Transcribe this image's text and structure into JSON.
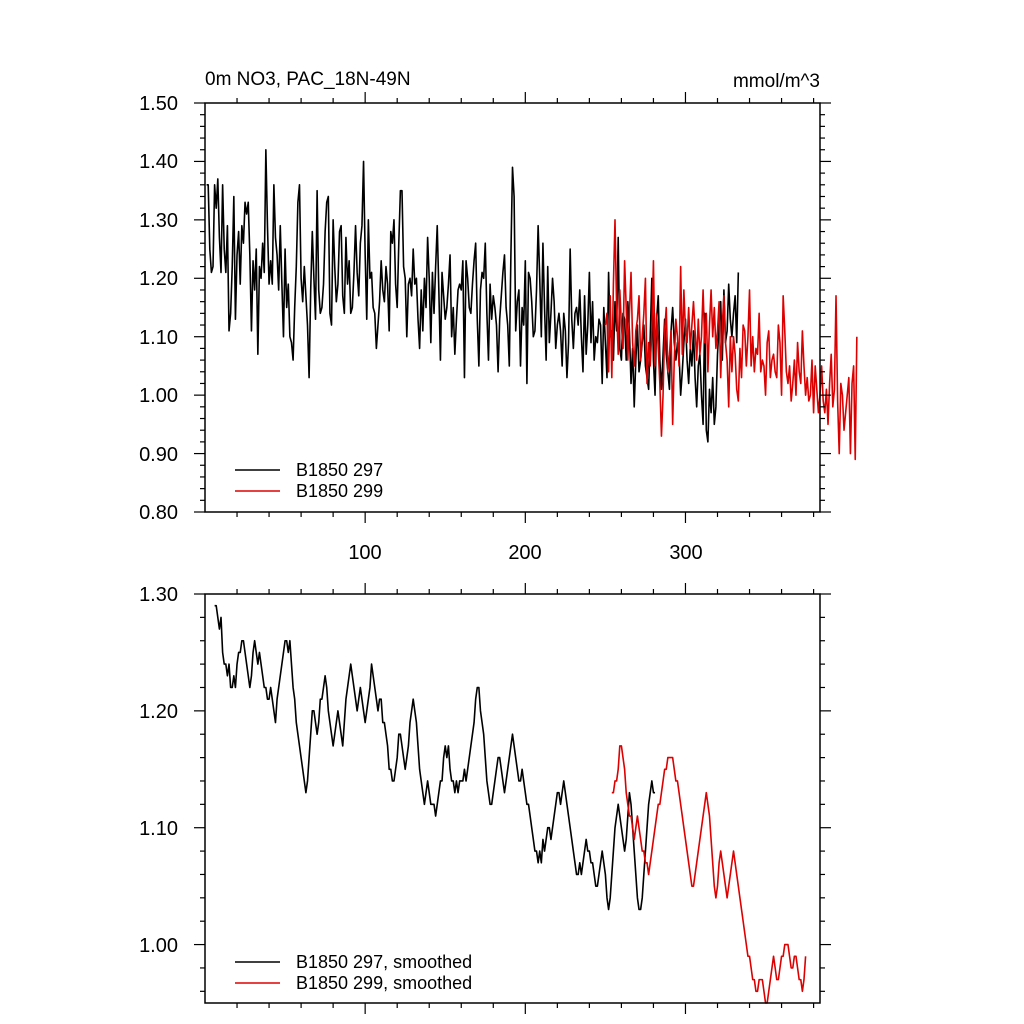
{
  "chart_data": [
    {
      "type": "line",
      "title": "0m NO3, PAC_18N-49N",
      "units": "mmol/m^3",
      "xlim": [
        0,
        384
      ],
      "ylim": [
        0.8,
        1.5
      ],
      "ytick_labels": [
        "0.80",
        "0.90",
        "1.00",
        "1.10",
        "1.20",
        "1.30",
        "1.40",
        "1.50"
      ],
      "xtick_labels": [
        "100",
        "200",
        "300"
      ],
      "legend_position": "bottom-left",
      "series": [
        {
          "name": "B1850 297",
          "color": "#000000",
          "x_start": 1,
          "values": [
            1.36,
            1.36,
            1.25,
            1.21,
            1.22,
            1.36,
            1.32,
            1.37,
            1.27,
            1.21,
            1.36,
            1.25,
            1.21,
            1.29,
            1.11,
            1.14,
            1.22,
            1.34,
            1.13,
            1.24,
            1.28,
            1.19,
            1.29,
            1.26,
            1.33,
            1.31,
            1.33,
            1.24,
            1.11,
            1.23,
            1.18,
            1.25,
            1.07,
            1.22,
            1.2,
            1.26,
            1.21,
            1.42,
            1.29,
            1.19,
            1.23,
            1.19,
            1.36,
            1.27,
            1.24,
            1.18,
            1.29,
            1.19,
            1.1,
            1.25,
            1.15,
            1.19,
            1.1,
            1.09,
            1.06,
            1.15,
            1.22,
            1.33,
            1.36,
            1.2,
            1.16,
            1.22,
            1.17,
            1.12,
            1.03,
            1.18,
            1.28,
            1.2,
            1.13,
            1.35,
            1.18,
            1.14,
            1.15,
            1.19,
            1.28,
            1.33,
            1.34,
            1.14,
            1.12,
            1.3,
            1.22,
            1.16,
            1.19,
            1.28,
            1.29,
            1.17,
            1.14,
            1.27,
            1.19,
            1.23,
            1.14,
            1.15,
            1.21,
            1.29,
            1.21,
            1.17,
            1.26,
            1.29,
            1.4,
            1.24,
            1.13,
            1.3,
            1.2,
            1.21,
            1.15,
            1.14,
            1.08,
            1.12,
            1.16,
            1.23,
            1.18,
            1.16,
            1.22,
            1.19,
            1.11,
            1.28,
            1.26,
            1.3,
            1.19,
            1.15,
            1.26,
            1.35,
            1.35,
            1.22,
            1.2,
            1.1,
            1.19,
            1.2,
            1.17,
            1.25,
            1.19,
            1.2,
            1.13,
            1.08,
            1.18,
            1.11,
            1.2,
            1.15,
            1.27,
            1.2,
            1.09,
            1.21,
            1.14,
            1.22,
            1.29,
            1.18,
            1.06,
            1.21,
            1.17,
            1.13,
            1.15,
            1.19,
            1.24,
            1.1,
            1.15,
            1.07,
            1.13,
            1.18,
            1.19,
            1.18,
            1.23,
            1.03,
            1.23,
            1.2,
            1.15,
            1.14,
            1.19,
            1.23,
            1.26,
            1.13,
            1.05,
            1.18,
            1.21,
            1.2,
            1.26,
            1.14,
            1.06,
            1.19,
            1.13,
            1.17,
            1.15,
            1.12,
            1.04,
            1.13,
            1.17,
            1.21,
            1.24,
            1.15,
            1.12,
            1.05,
            1.24,
            1.39,
            1.34,
            1.11,
            1.16,
            1.18,
            1.05,
            1.15,
            1.12,
            1.23,
            1.02,
            1.21,
            1.2,
            1.16,
            1.1,
            1.11,
            1.18,
            1.29,
            1.2,
            1.1,
            1.26,
            1.15,
            1.06,
            1.22,
            1.09,
            1.14,
            1.2,
            1.16,
            1.08,
            1.12,
            1.14,
            1.11,
            1.05,
            1.14,
            1.11,
            1.03,
            1.09,
            1.25,
            1.13,
            1.08,
            1.14,
            1.15,
            1.12,
            1.18,
            1.1,
            1.04,
            1.17,
            1.07,
            1.12,
            1.21,
            1.09,
            1.16,
            1.06,
            1.1,
            1.09,
            1.13,
            1.12,
            1.02,
            1.15,
            1.09,
            1.03,
            1.21,
            1.1,
            1.11,
            1.06,
            1.16,
            1.11,
            1.27,
            1.08,
            1.06,
            1.14,
            1.13,
            1.06,
            1.16,
            1.11,
            1.02,
            1.08,
            0.98,
            1.06,
            1.12,
            1.04,
            1.06,
            1.09,
            1.12,
            1.05,
            1.03,
            1.01,
            1.1,
            1.2,
            1.06,
            1.0,
            1.13,
            1.17,
            1.06,
            1.01,
            1.07,
            1.13,
            1.07,
            1.04,
            1.01,
            1.11,
            1.15,
            1.09,
            1.06,
            1.09,
            1.07,
            1.0,
            1.04,
            1.09,
            1.13,
            1.06,
            1.02,
            1.08,
            1.05,
            1.11,
            1.03,
            0.98,
            1.05,
            1.07,
            1.0,
            0.95,
            1.14,
            0.94,
            0.92,
            1.01,
            0.97,
            1.03,
            0.95,
            0.98,
            1.07,
            1.12,
            1.16,
            1.06,
            1.18,
            1.09,
            1.11,
            1.19,
            1.13,
            1.1,
            1.14,
            1.17,
            1.09,
            1.21
          ]
        },
        {
          "name": "B1850 299",
          "color": "#dd0000",
          "x_start": 250,
          "values": [
            1.12,
            1.14,
            1.04,
            1.17,
            1.03,
            1.19,
            1.3,
            1.15,
            1.07,
            1.18,
            1.12,
            1.08,
            1.23,
            1.15,
            1.06,
            1.14,
            1.21,
            1.09,
            1.05,
            1.11,
            1.13,
            1.17,
            1.06,
            1.1,
            1.14,
            1.2,
            1.02,
            1.09,
            1.05,
            1.11,
            1.23,
            1.05,
            1.14,
            1.08,
            1.02,
            0.93,
            1.0,
            1.11,
            1.15,
            1.04,
            1.07,
            1.11,
            0.95,
            1.06,
            1.13,
            1.1,
            1.05,
            1.22,
            1.07,
            1.18,
            1.11,
            1.09,
            1.15,
            1.08,
            1.12,
            1.16,
            1.11,
            1.06,
            1.13,
            1.07,
            1.1,
            1.18,
            1.09,
            1.14,
            1.04,
            1.12,
            1.18,
            1.1,
            1.15,
            1.08,
            1.11,
            1.16,
            1.03,
            1.12,
            1.17,
            1.09,
            1.06,
            0.98,
            1.1,
            1.04,
            1.1,
            1.07,
            1.01,
            0.99,
            1.08,
            1.03,
            1.12,
            1.11,
            1.05,
            1.1,
            1.18,
            1.05,
            1.1,
            1.04,
            1.08,
            1.07,
            1.14,
            1.04,
            1.06,
            1.05,
            1.0,
            1.09,
            1.11,
            1.03,
            1.06,
            1.07,
            1.04,
            1.03,
            1.12,
            1.09,
            1.0,
            1.17,
            1.11,
            1.04,
            1.02,
            1.05,
            0.99,
            1.02,
            1.06,
            1.0,
            1.09,
            1.04,
            1.02,
            1.11,
            1.05,
            1.0,
            1.03,
            0.99,
            1.0,
            1.06,
            0.97,
            1.05,
            1.01,
            0.97,
            1.0,
            1.05,
            0.99,
            0.97,
            1.01,
            0.95,
            1.02,
            1.07,
            0.98,
            1.01,
            1.17,
            0.99,
            0.9,
            1.02,
            1.0,
            0.94,
            0.97,
            1.0,
            1.03,
            0.9,
            1.02,
            1.05,
            0.89,
            1.1
          ]
        }
      ]
    },
    {
      "type": "line",
      "title": "",
      "xlim": [
        0,
        384
      ],
      "ylim": [
        0.95,
        1.3
      ],
      "ytick_labels": [
        "1.00",
        "1.10",
        "1.20",
        "1.30"
      ],
      "legend_position": "bottom-left",
      "series": [
        {
          "name": "B1850 297, smoothed",
          "color": "#000000",
          "x_start": 6,
          "values": [
            1.29,
            1.29,
            1.28,
            1.27,
            1.28,
            1.25,
            1.24,
            1.24,
            1.23,
            1.24,
            1.22,
            1.22,
            1.23,
            1.22,
            1.24,
            1.25,
            1.25,
            1.26,
            1.26,
            1.25,
            1.24,
            1.23,
            1.22,
            1.23,
            1.25,
            1.26,
            1.25,
            1.24,
            1.25,
            1.24,
            1.23,
            1.22,
            1.22,
            1.21,
            1.21,
            1.22,
            1.21,
            1.2,
            1.19,
            1.21,
            1.22,
            1.23,
            1.24,
            1.25,
            1.26,
            1.26,
            1.25,
            1.26,
            1.24,
            1.22,
            1.21,
            1.19,
            1.18,
            1.17,
            1.16,
            1.15,
            1.14,
            1.13,
            1.14,
            1.16,
            1.18,
            1.2,
            1.2,
            1.19,
            1.18,
            1.19,
            1.21,
            1.21,
            1.22,
            1.23,
            1.22,
            1.2,
            1.19,
            1.18,
            1.17,
            1.18,
            1.19,
            1.2,
            1.19,
            1.18,
            1.17,
            1.19,
            1.21,
            1.22,
            1.23,
            1.24,
            1.23,
            1.22,
            1.21,
            1.2,
            1.21,
            1.22,
            1.21,
            1.2,
            1.19,
            1.2,
            1.21,
            1.22,
            1.24,
            1.23,
            1.22,
            1.21,
            1.2,
            1.21,
            1.21,
            1.19,
            1.19,
            1.18,
            1.17,
            1.15,
            1.15,
            1.14,
            1.14,
            1.15,
            1.16,
            1.18,
            1.18,
            1.17,
            1.16,
            1.15,
            1.16,
            1.17,
            1.19,
            1.2,
            1.21,
            1.2,
            1.19,
            1.17,
            1.15,
            1.14,
            1.13,
            1.12,
            1.13,
            1.14,
            1.13,
            1.12,
            1.12,
            1.12,
            1.11,
            1.12,
            1.13,
            1.14,
            1.14,
            1.16,
            1.17,
            1.16,
            1.17,
            1.15,
            1.14,
            1.14,
            1.13,
            1.14,
            1.13,
            1.14,
            1.14,
            1.14,
            1.15,
            1.14,
            1.15,
            1.16,
            1.17,
            1.18,
            1.19,
            1.21,
            1.22,
            1.22,
            1.2,
            1.19,
            1.18,
            1.16,
            1.14,
            1.13,
            1.12,
            1.12,
            1.13,
            1.14,
            1.15,
            1.16,
            1.16,
            1.15,
            1.14,
            1.13,
            1.14,
            1.15,
            1.16,
            1.17,
            1.18,
            1.17,
            1.16,
            1.15,
            1.14,
            1.14,
            1.15,
            1.14,
            1.13,
            1.12,
            1.12,
            1.11,
            1.1,
            1.09,
            1.08,
            1.08,
            1.07,
            1.08,
            1.07,
            1.09,
            1.08,
            1.09,
            1.1,
            1.1,
            1.09,
            1.1,
            1.11,
            1.12,
            1.13,
            1.13,
            1.12,
            1.13,
            1.14,
            1.13,
            1.12,
            1.11,
            1.1,
            1.09,
            1.08,
            1.07,
            1.06,
            1.06,
            1.07,
            1.06,
            1.07,
            1.08,
            1.09,
            1.08,
            1.08,
            1.07,
            1.07,
            1.06,
            1.05,
            1.05,
            1.06,
            1.07,
            1.08,
            1.07,
            1.06,
            1.04,
            1.03,
            1.04,
            1.06,
            1.08,
            1.1,
            1.11,
            1.12,
            1.11,
            1.1,
            1.09,
            1.08,
            1.09,
            1.11,
            1.13,
            1.12,
            1.1,
            1.08,
            1.06,
            1.04,
            1.03,
            1.03,
            1.04,
            1.06,
            1.08,
            1.1,
            1.12,
            1.13,
            1.14,
            1.13,
            1.13
          ]
        },
        {
          "name": "B1850 299, smoothed",
          "color": "#dd0000",
          "x_start": 254,
          "values": [
            1.13,
            1.13,
            1.14,
            1.14,
            1.15,
            1.17,
            1.17,
            1.16,
            1.15,
            1.13,
            1.12,
            1.11,
            1.11,
            1.1,
            1.09,
            1.1,
            1.11,
            1.1,
            1.09,
            1.08,
            1.08,
            1.07,
            1.07,
            1.06,
            1.07,
            1.08,
            1.09,
            1.1,
            1.11,
            1.12,
            1.12,
            1.13,
            1.14,
            1.15,
            1.15,
            1.16,
            1.16,
            1.16,
            1.16,
            1.15,
            1.14,
            1.14,
            1.13,
            1.12,
            1.11,
            1.1,
            1.09,
            1.08,
            1.07,
            1.06,
            1.05,
            1.05,
            1.06,
            1.07,
            1.08,
            1.09,
            1.1,
            1.11,
            1.12,
            1.13,
            1.12,
            1.11,
            1.09,
            1.07,
            1.05,
            1.04,
            1.05,
            1.07,
            1.08,
            1.07,
            1.06,
            1.05,
            1.04,
            1.05,
            1.06,
            1.07,
            1.08,
            1.07,
            1.06,
            1.05,
            1.04,
            1.03,
            1.02,
            1.01,
            1.0,
            0.99,
            0.99,
            0.98,
            0.97,
            0.97,
            0.96,
            0.96,
            0.97,
            0.97,
            0.97,
            0.96,
            0.95,
            0.95,
            0.96,
            0.97,
            0.98,
            0.99,
            0.98,
            0.97,
            0.97,
            0.98,
            0.99,
            0.99,
            1.0,
            1.0,
            1.0,
            0.99,
            0.98,
            0.98,
            0.99,
            0.99,
            0.98,
            0.97,
            0.97,
            0.96,
            0.97,
            0.99
          ]
        }
      ]
    }
  ]
}
